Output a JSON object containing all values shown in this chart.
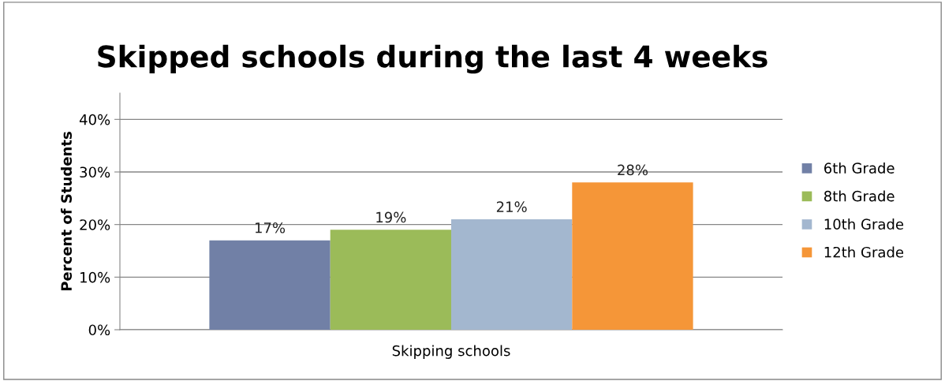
{
  "chart_data": {
    "type": "bar",
    "title": "Skipped schools during the last 4 weeks",
    "ylabel": "Percent of Students",
    "categories": [
      "Skipping schools"
    ],
    "series": [
      {
        "name": "6th Grade",
        "color": "#7180a6",
        "values": [
          17
        ],
        "value_labels": [
          "17%"
        ]
      },
      {
        "name": "8th Grade",
        "color": "#9bbb59",
        "values": [
          19
        ],
        "value_labels": [
          "19%"
        ]
      },
      {
        "name": "10th Grade",
        "color": "#a3b7cf",
        "values": [
          21
        ],
        "value_labels": [
          "21%"
        ]
      },
      {
        "name": "12th Grade",
        "color": "#f59638",
        "values": [
          28
        ],
        "value_labels": [
          "28%"
        ]
      }
    ],
    "ylim": [
      0,
      45
    ],
    "yticks": [
      {
        "value": 0,
        "label": "0%"
      },
      {
        "value": 10,
        "label": "10%"
      },
      {
        "value": 20,
        "label": "20%"
      },
      {
        "value": 30,
        "label": "30%"
      },
      {
        "value": 40,
        "label": "40%"
      }
    ],
    "grid": "y",
    "legend": "right"
  }
}
